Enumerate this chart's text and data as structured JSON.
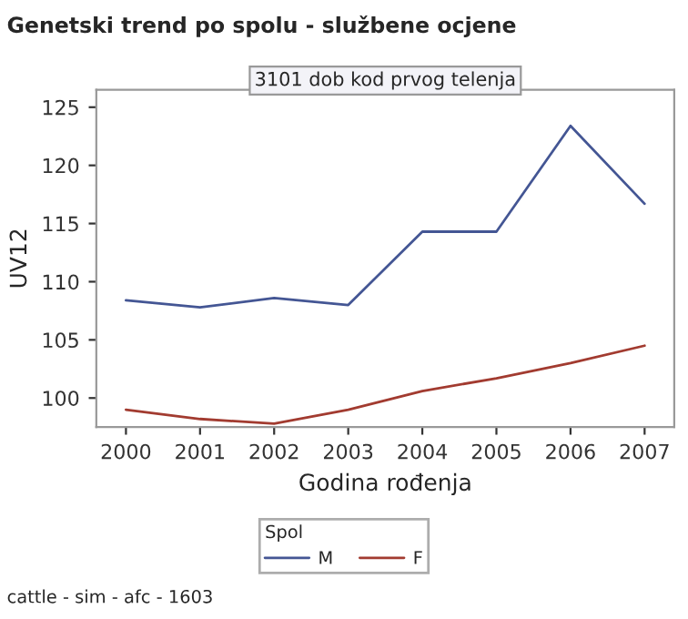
{
  "chart_data": {
    "type": "line",
    "title": "Genetski trend po spolu - službene ocjene",
    "subtitle": "3101 dob kod prvog telenja",
    "xlabel": "Godina rođenja",
    "ylabel": "UV12",
    "legend_title": "Spol",
    "x": [
      2000,
      2001,
      2002,
      2003,
      2004,
      2005,
      2006,
      2007
    ],
    "series": [
      {
        "name": "M",
        "color": "#445694",
        "values": [
          108.4,
          107.8,
          108.6,
          108.0,
          114.3,
          114.3,
          123.4,
          116.7
        ]
      },
      {
        "name": "F",
        "color": "#a23b30",
        "values": [
          99.0,
          98.2,
          97.8,
          99.0,
          100.6,
          101.7,
          103.0,
          104.5
        ]
      }
    ],
    "xlim": [
      1999.6,
      2007.4
    ],
    "xticks": [
      2000,
      2001,
      2002,
      2003,
      2004,
      2005,
      2006,
      2007
    ],
    "ylim": [
      97.5,
      126.5
    ],
    "yticks": [
      100,
      105,
      110,
      115,
      120,
      125
    ],
    "grid": false,
    "legend": "bottom",
    "marker": "none",
    "line_style": "solid",
    "annotations": [
      "cattle - sim - afc - 1603"
    ]
  }
}
